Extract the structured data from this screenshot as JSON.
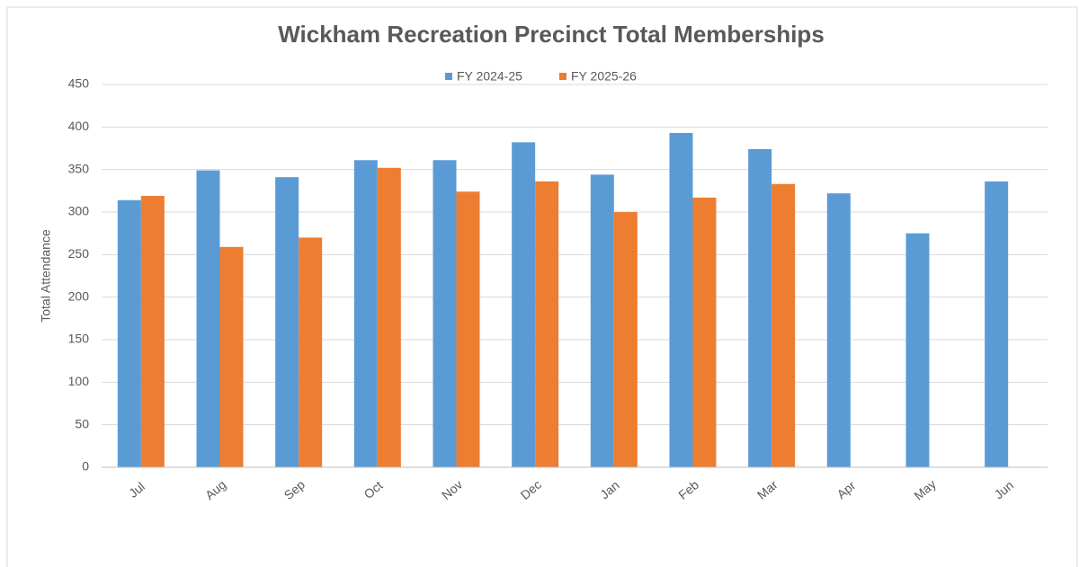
{
  "chart_data": {
    "type": "bar",
    "title": "Wickham Recreation Precinct Total Memberships",
    "y_label": "Total Attendance",
    "categories": [
      "Jul",
      "Aug",
      "Sep",
      "Oct",
      "Nov",
      "Dec",
      "Jan",
      "Feb",
      "Mar",
      "Apr",
      "May",
      "Jun"
    ],
    "series": [
      {
        "name": "FY 2024-25",
        "color": "#5b9bd5",
        "values": [
          314,
          349,
          341,
          361,
          361,
          382,
          344,
          393,
          374,
          322,
          275,
          336
        ]
      },
      {
        "name": "FY 2025-26",
        "color": "#ed7d31",
        "values": [
          319,
          259,
          270,
          352,
          324,
          336,
          300,
          317,
          333,
          null,
          null,
          null
        ]
      }
    ],
    "ylim": [
      0,
      450
    ],
    "yticks": [
      0,
      50,
      100,
      150,
      200,
      250,
      300,
      350,
      400,
      450
    ],
    "grid": true,
    "legend": "top"
  }
}
